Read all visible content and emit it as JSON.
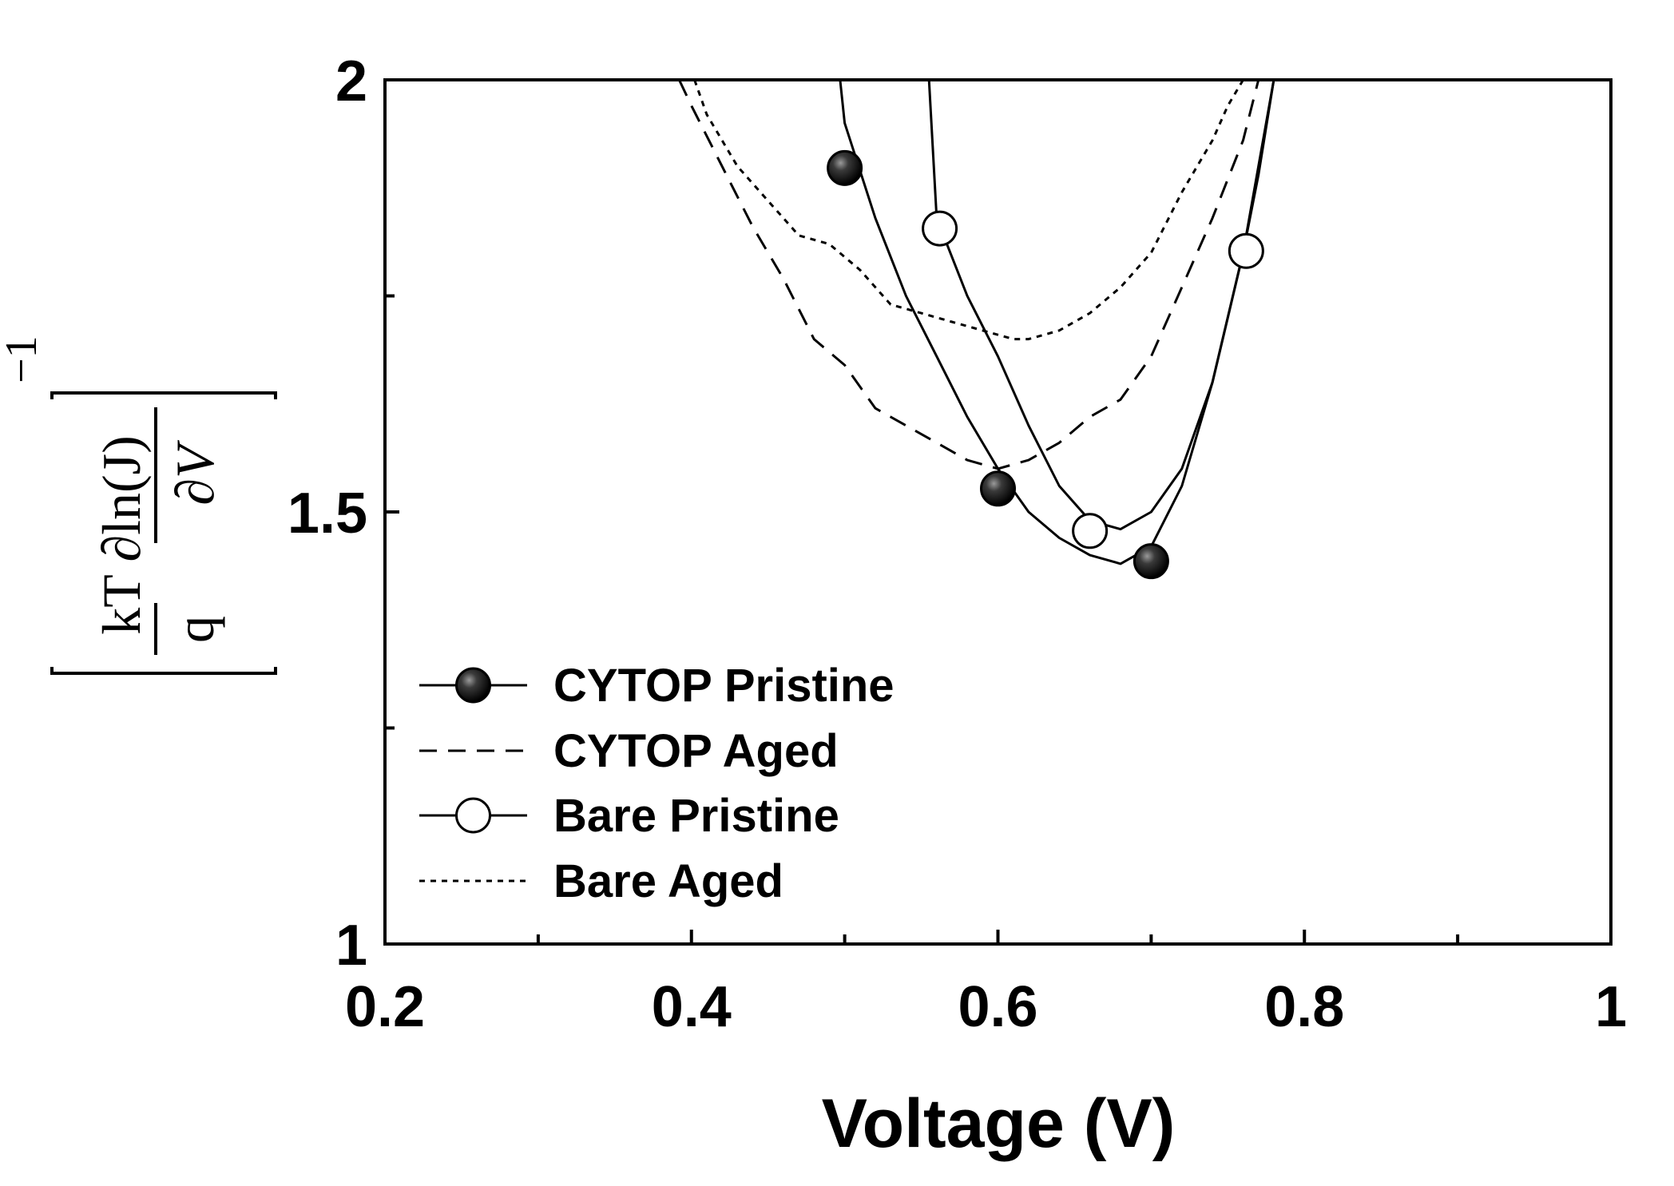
{
  "chart_data": {
    "type": "line",
    "title": "",
    "xlabel": "Voltage (V)",
    "ylabel": {
      "bracket_numerator": "kT ∂ln(J)",
      "bracket_denominator_left": "q",
      "bracket_denominator_right": "∂V",
      "exponent": "−1"
    },
    "xlim": [
      0.2,
      1.0
    ],
    "ylim": [
      1.0,
      2.0
    ],
    "x_ticks": [
      0.2,
      0.3,
      0.4,
      0.5,
      0.6,
      0.7,
      0.8,
      0.9,
      1.0
    ],
    "x_tick_labels": [
      "0.2",
      "",
      "0.4",
      "",
      "0.6",
      "",
      "0.8",
      "",
      "1"
    ],
    "y_ticks": [
      1.0,
      1.25,
      1.5,
      1.75,
      2.0
    ],
    "y_tick_labels": [
      "1",
      "",
      "1.5",
      "",
      "2"
    ],
    "grid": false,
    "legend_position": "bottom-left",
    "series": [
      {
        "name": "CYTOP Pristine",
        "line": "solid",
        "marker": "filled-circle",
        "color": "#000000",
        "x": [
          0.497,
          0.5,
          0.52,
          0.54,
          0.56,
          0.58,
          0.6,
          0.62,
          0.64,
          0.66,
          0.68,
          0.7,
          0.72,
          0.74,
          0.76,
          0.78
        ],
        "y": [
          2.0,
          1.95,
          1.84,
          1.75,
          1.68,
          1.61,
          1.55,
          1.5,
          1.47,
          1.45,
          1.44,
          1.46,
          1.53,
          1.65,
          1.8,
          2.0
        ],
        "marker_x": [
          0.5,
          0.6,
          0.7
        ],
        "marker_y": [
          1.898,
          1.527,
          1.443
        ]
      },
      {
        "name": "CYTOP Aged",
        "line": "dashed",
        "marker": "none",
        "color": "#000000",
        "x": [
          0.392,
          0.4,
          0.42,
          0.44,
          0.46,
          0.48,
          0.5,
          0.52,
          0.54,
          0.56,
          0.58,
          0.6,
          0.62,
          0.64,
          0.66,
          0.68,
          0.7,
          0.72,
          0.74,
          0.76,
          0.77
        ],
        "y": [
          2.0,
          1.97,
          1.9,
          1.83,
          1.77,
          1.7,
          1.67,
          1.62,
          1.6,
          1.58,
          1.56,
          1.55,
          1.56,
          1.58,
          1.61,
          1.63,
          1.68,
          1.76,
          1.84,
          1.93,
          2.0
        ]
      },
      {
        "name": "Bare Pristine",
        "line": "solid",
        "marker": "open-circle",
        "color": "#000000",
        "x": [
          0.555,
          0.56,
          0.58,
          0.6,
          0.62,
          0.64,
          0.66,
          0.68,
          0.7,
          0.72,
          0.74,
          0.76,
          0.77,
          0.78
        ],
        "y": [
          2.0,
          1.84,
          1.75,
          1.68,
          1.6,
          1.53,
          1.49,
          1.48,
          1.5,
          1.55,
          1.65,
          1.8,
          1.89,
          2.0
        ],
        "marker_x": [
          0.562,
          0.66,
          0.762
        ],
        "marker_y": [
          1.828,
          1.478,
          1.802
        ]
      },
      {
        "name": "Bare Aged",
        "line": "dotted",
        "marker": "none",
        "color": "#000000",
        "x": [
          0.402,
          0.41,
          0.43,
          0.45,
          0.47,
          0.49,
          0.51,
          0.53,
          0.55,
          0.57,
          0.59,
          0.61,
          0.62,
          0.64,
          0.66,
          0.68,
          0.7,
          0.72,
          0.74,
          0.75,
          0.76
        ],
        "y": [
          2.0,
          1.96,
          1.9,
          1.86,
          1.82,
          1.81,
          1.78,
          1.74,
          1.73,
          1.72,
          1.71,
          1.7,
          1.7,
          1.71,
          1.73,
          1.76,
          1.8,
          1.87,
          1.93,
          1.97,
          2.0
        ]
      }
    ]
  }
}
